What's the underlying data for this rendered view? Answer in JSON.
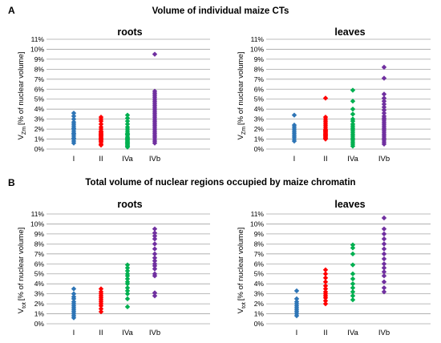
{
  "section_a": {
    "letter": "A",
    "title": "Volume of individual maize CTs"
  },
  "section_b": {
    "letter": "B",
    "title": "Total volume of nuclear regions occupied by maize chromatin"
  },
  "colors": {
    "I": "#2e75b6",
    "II": "#ff0000",
    "IVa": "#00b050",
    "IVb": "#7030a0",
    "grid": "#a6a6a6"
  },
  "chart_data": [
    {
      "type": "scatter",
      "title": "roots",
      "ylabel_main": "V",
      "ylabel_sub": "Zm",
      "ylabel_rest": "[% of nuclear volume]",
      "categories": [
        "I",
        "II",
        "IVa",
        "IVb"
      ],
      "yticks": [
        "0%",
        "1%",
        "2%",
        "3%",
        "4%",
        "5%",
        "6%",
        "7%",
        "8%",
        "9%",
        "10%",
        "11%"
      ],
      "ylim": [
        0,
        11
      ],
      "series": [
        {
          "category": "I",
          "values": [
            0.6,
            0.8,
            1.0,
            1.1,
            1.3,
            1.5,
            1.6,
            1.8,
            2.0,
            2.1,
            2.3,
            2.5,
            2.7,
            3.0,
            3.3,
            3.6
          ]
        },
        {
          "category": "II",
          "values": [
            0.4,
            0.5,
            0.7,
            0.8,
            0.9,
            1.0,
            1.1,
            1.2,
            1.3,
            1.4,
            1.5,
            1.6,
            1.7,
            1.8,
            2.0,
            2.2,
            2.5,
            2.8,
            3.0,
            3.2
          ]
        },
        {
          "category": "IVa",
          "values": [
            0.2,
            0.3,
            0.4,
            0.5,
            0.6,
            0.7,
            0.8,
            0.9,
            1.0,
            1.1,
            1.2,
            1.4,
            1.5,
            1.6,
            1.8,
            2.0,
            2.2,
            2.5,
            2.8,
            3.1,
            3.4
          ]
        },
        {
          "category": "IVb",
          "values": [
            0.6,
            0.8,
            1.0,
            1.2,
            1.4,
            1.6,
            1.8,
            2.0,
            2.2,
            2.4,
            2.6,
            2.8,
            3.0,
            3.2,
            3.4,
            3.6,
            3.8,
            4.0,
            4.2,
            4.4,
            4.6,
            4.8,
            5.0,
            5.2,
            5.4,
            5.6,
            5.8,
            9.5
          ]
        }
      ]
    },
    {
      "type": "scatter",
      "title": "leaves",
      "ylabel_main": "V",
      "ylabel_sub": "Zm",
      "ylabel_rest": "[% of nuclear volume]",
      "categories": [
        "I",
        "II",
        "IVa",
        "IVb"
      ],
      "yticks": [
        "0%",
        "1%",
        "2%",
        "3%",
        "4%",
        "5%",
        "6%",
        "7%",
        "8%",
        "9%",
        "10%",
        "11%"
      ],
      "ylim": [
        0,
        11
      ],
      "series": [
        {
          "category": "I",
          "values": [
            0.8,
            1.0,
            1.2,
            1.4,
            1.6,
            1.8,
            2.0,
            2.2,
            2.4,
            3.4
          ]
        },
        {
          "category": "II",
          "values": [
            1.0,
            1.1,
            1.2,
            1.3,
            1.4,
            1.5,
            1.6,
            1.7,
            1.8,
            1.9,
            2.0,
            2.2,
            2.4,
            2.6,
            2.8,
            3.0,
            3.2,
            5.1
          ]
        },
        {
          "category": "IVa",
          "values": [
            0.3,
            0.5,
            0.7,
            0.9,
            1.1,
            1.3,
            1.5,
            1.7,
            1.9,
            2.1,
            2.3,
            2.5,
            2.8,
            3.0,
            3.5,
            4.0,
            4.8,
            5.9
          ]
        },
        {
          "category": "IVb",
          "values": [
            0.5,
            0.7,
            0.9,
            1.1,
            1.3,
            1.5,
            1.7,
            1.9,
            2.1,
            2.3,
            2.5,
            2.7,
            2.9,
            3.1,
            3.3,
            3.6,
            3.9,
            4.2,
            4.5,
            4.8,
            5.1,
            5.5,
            7.1,
            8.2
          ]
        }
      ]
    },
    {
      "type": "scatter",
      "title": "roots",
      "ylabel_main": "V",
      "ylabel_sub": "tot",
      "ylabel_rest": "[% of nuclear volume]",
      "categories": [
        "I",
        "II",
        "IVa",
        "IVb"
      ],
      "yticks": [
        "0%",
        "1%",
        "2%",
        "3%",
        "4%",
        "5%",
        "6%",
        "7%",
        "8%",
        "9%",
        "10%",
        "11%"
      ],
      "ylim": [
        0,
        11
      ],
      "series": [
        {
          "category": "I",
          "values": [
            0.6,
            0.8,
            1.0,
            1.2,
            1.4,
            1.6,
            1.8,
            2.0,
            2.2,
            2.5,
            2.7,
            3.0,
            3.5
          ]
        },
        {
          "category": "II",
          "values": [
            1.2,
            1.5,
            1.8,
            2.0,
            2.2,
            2.4,
            2.6,
            2.8,
            3.0,
            3.2,
            3.5
          ]
        },
        {
          "category": "IVa",
          "values": [
            1.7,
            2.5,
            3.0,
            3.3,
            3.6,
            4.0,
            4.2,
            4.5,
            4.8,
            5.0,
            5.3,
            5.6,
            5.9
          ]
        },
        {
          "category": "IVb",
          "values": [
            2.8,
            3.1,
            4.8,
            5.0,
            5.5,
            5.8,
            6.0,
            6.3,
            6.6,
            7.0,
            7.5,
            8.0,
            8.5,
            8.8,
            9.1,
            9.5
          ]
        }
      ]
    },
    {
      "type": "scatter",
      "title": "leaves",
      "ylabel_main": "V",
      "ylabel_sub": "tot",
      "ylabel_rest": "[% of nuclear volume]",
      "categories": [
        "I",
        "II",
        "IVa",
        "IVb"
      ],
      "yticks": [
        "0%",
        "1%",
        "2%",
        "3%",
        "4%",
        "5%",
        "6%",
        "7%",
        "8%",
        "9%",
        "10%",
        "11%"
      ],
      "ylim": [
        0,
        11
      ],
      "series": [
        {
          "category": "I",
          "values": [
            0.8,
            1.0,
            1.2,
            1.4,
            1.6,
            1.8,
            2.0,
            2.2,
            2.5,
            3.3
          ]
        },
        {
          "category": "II",
          "values": [
            2.0,
            2.3,
            2.6,
            2.8,
            3.0,
            3.2,
            3.5,
            3.8,
            4.2,
            4.6,
            5.0,
            5.4
          ]
        },
        {
          "category": "IVa",
          "values": [
            2.4,
            2.8,
            3.2,
            3.6,
            4.0,
            4.5,
            5.0,
            5.9,
            7.0,
            7.6,
            7.9
          ]
        },
        {
          "category": "IVb",
          "values": [
            3.2,
            3.6,
            4.2,
            4.8,
            5.2,
            5.6,
            6.0,
            6.5,
            7.0,
            7.5,
            8.0,
            8.5,
            9.0,
            9.5,
            10.6
          ]
        }
      ]
    }
  ]
}
